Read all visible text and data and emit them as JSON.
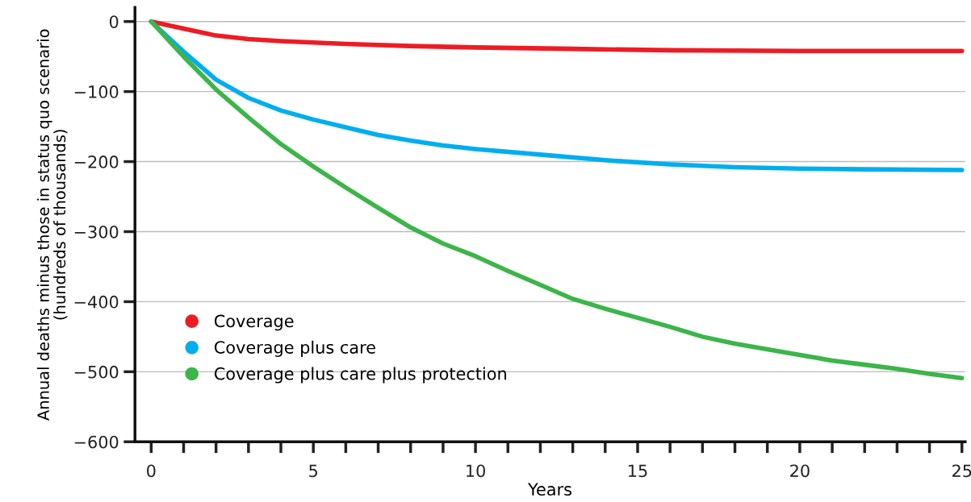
{
  "chart_data": {
    "type": "line",
    "xlabel": "Years",
    "ylabel": "Annual deaths minus those in status quo scenario\n(hundreds of thousands)",
    "xlim": [
      -0.5,
      25.1
    ],
    "ylim": [
      -600,
      20
    ],
    "xticks": [
      0,
      {
        "value": 1,
        "label": null
      },
      {
        "value": 2,
        "label": null
      },
      {
        "value": 3,
        "label": null
      },
      {
        "value": 4,
        "label": null
      },
      5,
      {
        "value": 6,
        "label": null
      },
      {
        "value": 7,
        "label": null
      },
      {
        "value": 8,
        "label": null
      },
      {
        "value": 9,
        "label": null
      },
      10,
      {
        "value": 11,
        "label": null
      },
      {
        "value": 12,
        "label": null
      },
      {
        "value": 13,
        "label": null
      },
      {
        "value": 14,
        "label": null
      },
      15,
      {
        "value": 16,
        "label": null
      },
      {
        "value": 17,
        "label": null
      },
      {
        "value": 18,
        "label": null
      },
      {
        "value": 19,
        "label": null
      },
      20,
      {
        "value": 21,
        "label": null
      },
      {
        "value": 22,
        "label": null
      },
      {
        "value": 23,
        "label": null
      },
      {
        "value": 24,
        "label": null
      },
      25
    ],
    "yticks": [
      0,
      {
        "value": -100,
        "label": "−100"
      },
      {
        "value": -200,
        "label": "−200"
      },
      {
        "value": -300,
        "label": "−300"
      },
      {
        "value": -400,
        "label": "−400"
      },
      {
        "value": -500,
        "label": "−500"
      },
      {
        "value": -600,
        "label": "−600"
      }
    ],
    "grid": "y",
    "legend": "left",
    "line_style": "solid",
    "series": [
      {
        "name": "Coverage",
        "color": "#ed1c24",
        "x": [
          0,
          1,
          2,
          3,
          4,
          5,
          6,
          8,
          10,
          13,
          16,
          20,
          25
        ],
        "values": [
          0,
          -10,
          -20,
          -25,
          -28,
          -30,
          -32,
          -35,
          -37,
          -39,
          -41,
          -42,
          -42
        ]
      },
      {
        "name": "Coverage plus care",
        "color": "#00aeef",
        "x": [
          0,
          1,
          2,
          3,
          4,
          5,
          6,
          7,
          8,
          9,
          10,
          12,
          14,
          16,
          18,
          20,
          22,
          25
        ],
        "values": [
          0,
          -43,
          -83,
          -109,
          -127,
          -140,
          -151,
          -162,
          -170,
          -177,
          -182,
          -190,
          -198,
          -204,
          -208,
          -210,
          -211,
          -212
        ]
      },
      {
        "name": "Coverage plus care plus protection",
        "color": "#3cb54a",
        "x": [
          0,
          1,
          2,
          3,
          4,
          5,
          6,
          7,
          8,
          9,
          10,
          11,
          12,
          13,
          14,
          15,
          16,
          17,
          18,
          19,
          20,
          21,
          22,
          23,
          24,
          25
        ],
        "values": [
          0,
          -50,
          -97,
          -137,
          -175,
          -207,
          -237,
          -266,
          -294,
          -317,
          -335,
          -356,
          -376,
          -396,
          -410,
          -423,
          -436,
          -450,
          -460,
          -468,
          -476,
          -484,
          -490,
          -496,
          -503,
          -509
        ]
      }
    ]
  }
}
